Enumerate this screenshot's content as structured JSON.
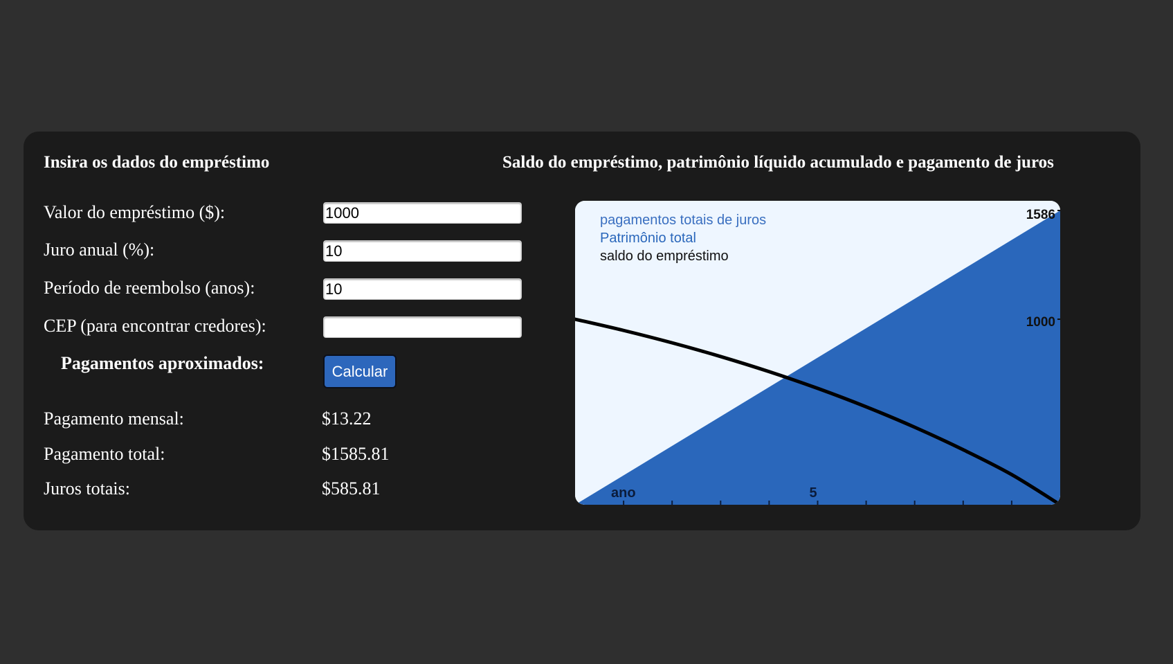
{
  "left_section": {
    "title": "Insira os dados do empréstimo",
    "fields": [
      {
        "label": "Valor do empréstimo ($):",
        "value": "1000"
      },
      {
        "label": "Juro anual (%):",
        "value": "10"
      },
      {
        "label": "Período de reembolso (anos):",
        "value": "10"
      },
      {
        "label": "CEP (para encontrar credores):",
        "value": ""
      }
    ],
    "payments_label": "Pagamentos aproximados:",
    "calculate_button": "Calcular",
    "results": [
      {
        "label": "Pagamento mensal:",
        "value": "$13.22"
      },
      {
        "label": "Pagamento total:",
        "value": "$1585.81"
      },
      {
        "label": "Juros totais:",
        "value": "$585.81"
      }
    ]
  },
  "right_section": {
    "title": "Saldo do empréstimo, patrimônio líquido acumulado e pagamento de juros"
  },
  "colors": {
    "page_background": "#2f2f2f",
    "panel_background": "#1b1b1b",
    "button": "#2d67bc",
    "chart_background": "#eef6ff",
    "equity_area": "#2a67bb",
    "interest_legend": "#3a6fc0",
    "balance_line": "#000000"
  },
  "chart_data": {
    "type": "area",
    "x_label": "ano",
    "x_range": [
      0,
      10
    ],
    "x_tick_label": "5",
    "y_range": [
      0,
      1586
    ],
    "y_tick_labels": [
      "1586",
      "1000"
    ],
    "legend": [
      "pagamentos totais de juros",
      "Patrimônio total",
      "saldo do empréstimo"
    ],
    "series": [
      {
        "name": "Patrimônio total",
        "x": [
          0,
          10
        ],
        "values": [
          0,
          1585.81
        ]
      },
      {
        "name": "saldo do empréstimo",
        "x": [
          0,
          1,
          2,
          3,
          4,
          5,
          6,
          7,
          8,
          9,
          10
        ],
        "values": [
          1000,
          939.5,
          872.7,
          798.9,
          717.4,
          627.4,
          527.9,
          418,
          296.6,
          162.6,
          0
        ]
      }
    ]
  }
}
